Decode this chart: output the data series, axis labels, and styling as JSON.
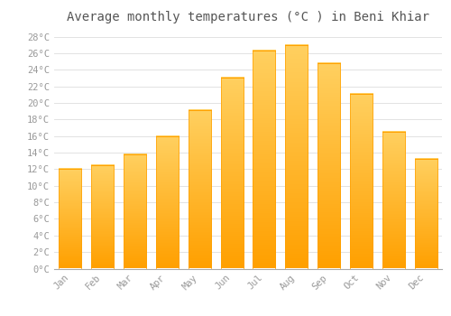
{
  "title": "Average monthly temperatures (°C ) in Beni Khiar",
  "months": [
    "Jan",
    "Feb",
    "Mar",
    "Apr",
    "May",
    "Jun",
    "Jul",
    "Aug",
    "Sep",
    "Oct",
    "Nov",
    "Dec"
  ],
  "values": [
    12.0,
    12.5,
    13.8,
    16.0,
    19.1,
    23.1,
    26.3,
    27.0,
    24.8,
    21.1,
    16.5,
    13.2
  ],
  "bar_color_top": "#FFD060",
  "bar_color_bottom": "#FFA000",
  "background_color": "#FFFFFF",
  "grid_color": "#DDDDDD",
  "text_color": "#999999",
  "title_color": "#555555",
  "ylim": [
    0,
    29
  ],
  "yticks": [
    0,
    2,
    4,
    6,
    8,
    10,
    12,
    14,
    16,
    18,
    20,
    22,
    24,
    26,
    28
  ],
  "title_fontsize": 10,
  "tick_fontsize": 7.5,
  "font_family": "monospace"
}
